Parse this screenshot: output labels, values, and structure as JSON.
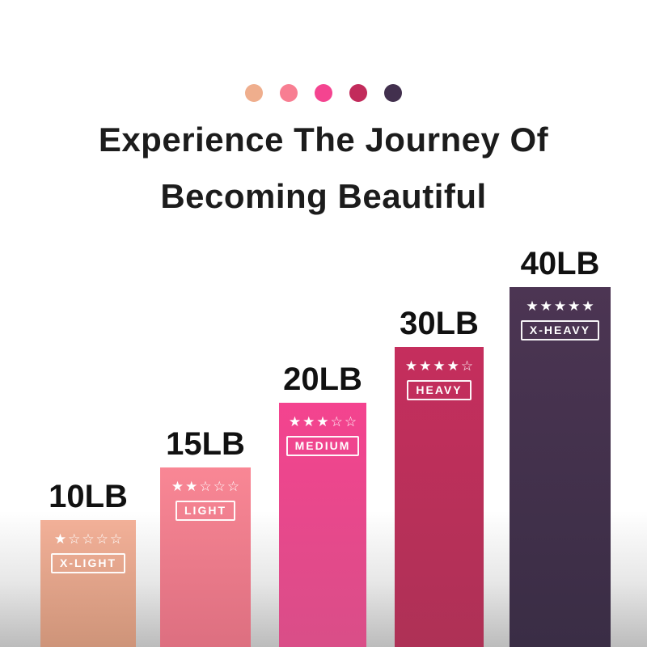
{
  "headline": {
    "line1": "Experience The Journey Of",
    "line2": "Becoming Beautiful"
  },
  "palette_dots": [
    {
      "name": "x-light-dot",
      "color": "#efae8d"
    },
    {
      "name": "light-dot",
      "color": "#f87e92"
    },
    {
      "name": "medium-dot",
      "color": "#f44490"
    },
    {
      "name": "heavy-dot",
      "color": "#c22b5b"
    },
    {
      "name": "x-heavy-dot",
      "color": "#42304e"
    }
  ],
  "chart_data": {
    "type": "bar",
    "title": "Experience The Journey Of Becoming Beautiful",
    "categories": [
      "X-LIGHT",
      "LIGHT",
      "MEDIUM",
      "HEAVY",
      "X-HEAVY"
    ],
    "values": [
      10,
      15,
      20,
      30,
      40
    ],
    "unit": "LB",
    "rating_max": 5,
    "xlabel": "",
    "ylabel": "",
    "legend": "none",
    "grid": false,
    "bars": [
      {
        "weight_label": "10LB",
        "value": 10,
        "resistance": "X-LIGHT",
        "rating": 1,
        "color_top": "#f2b098",
        "color_bottom": "#ce9479"
      },
      {
        "weight_label": "15LB",
        "value": 15,
        "resistance": "LIGHT",
        "rating": 2,
        "color_top": "#f98795",
        "color_bottom": "#dd6f80"
      },
      {
        "weight_label": "20LB",
        "value": 20,
        "resistance": "MEDIUM",
        "rating": 3,
        "color_top": "#f4438f",
        "color_bottom": "#d94e88"
      },
      {
        "weight_label": "30LB",
        "value": 30,
        "resistance": "HEAVY",
        "rating": 4,
        "color_top": "#c52e5d",
        "color_bottom": "#ae3156"
      },
      {
        "weight_label": "40LB",
        "value": 40,
        "resistance": "X-HEAVY",
        "rating": 5,
        "color_top": "#4c3553",
        "color_bottom": "#3a2d45"
      }
    ]
  }
}
